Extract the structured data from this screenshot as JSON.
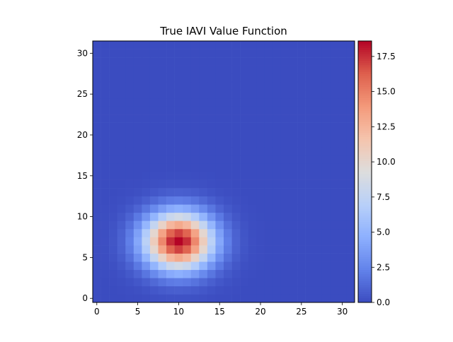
{
  "chart_data": {
    "type": "heatmap",
    "title": "True IAVI Value Function",
    "xlabel": "",
    "ylabel": "",
    "grid_size": 32,
    "xlim": [
      -0.5,
      31.5
    ],
    "ylim": [
      -0.5,
      31.5
    ],
    "x_ticks": [
      0,
      5,
      10,
      15,
      20,
      25,
      30
    ],
    "y_ticks": [
      0,
      5,
      10,
      15,
      20,
      25,
      30
    ],
    "colormap": "coolwarm",
    "vmin": 0.0,
    "vmax": 18.6,
    "colorbar_ticks": [
      "0.0",
      "2.5",
      "5.0",
      "7.5",
      "10.0",
      "12.5",
      "15.0",
      "17.5"
    ],
    "colorbar_tick_values": [
      0.0,
      2.5,
      5.0,
      7.5,
      10.0,
      12.5,
      15.0,
      17.5
    ],
    "peak": {
      "x": 10,
      "y": 7,
      "value": 18.6
    },
    "spread": {
      "sx": 2.9,
      "sy": 2.4
    },
    "grid": false
  }
}
